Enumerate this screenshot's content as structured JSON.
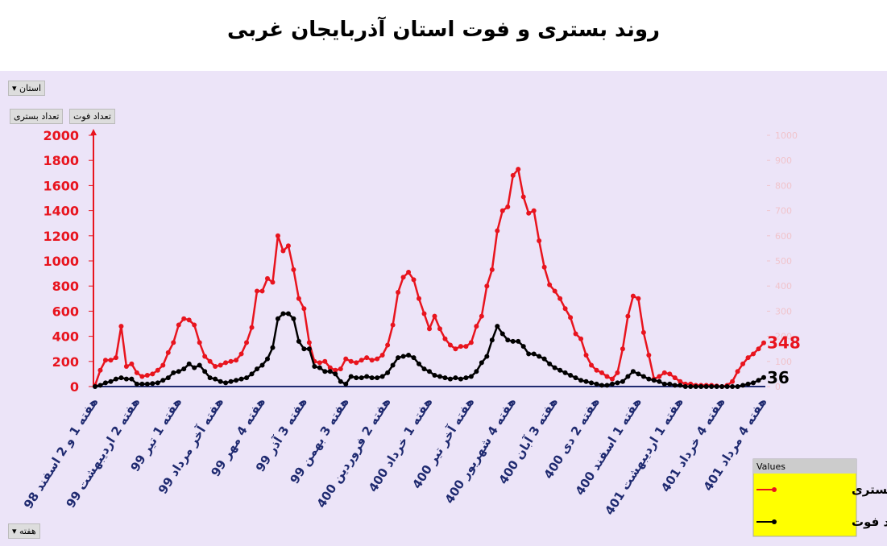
{
  "chart_data": {
    "type": "line",
    "title": "روند بستری و فوت استان آذربایجان غربی",
    "categories": [
      "هفته 1 و 2 اسفند 98",
      null,
      null,
      null,
      null,
      null,
      null,
      null,
      "هفته 2 اردیبهشت 99",
      null,
      null,
      null,
      null,
      null,
      null,
      null,
      "هفته 1 تیر 99",
      null,
      null,
      null,
      null,
      null,
      null,
      null,
      "هفته آخر مرداد 99",
      null,
      null,
      null,
      null,
      null,
      null,
      null,
      "هفته 4 مهر 99",
      null,
      null,
      null,
      null,
      null,
      null,
      null,
      "هفته 3 آذر 99",
      null,
      null,
      null,
      null,
      null,
      null,
      null,
      "هفته 3 بهمن 99",
      null,
      null,
      null,
      null,
      null,
      null,
      null,
      "هفته 2 فروردین 400",
      null,
      null,
      null,
      null,
      null,
      null,
      null,
      "هفته 1 خرداد 400",
      null,
      null,
      null,
      null,
      null,
      null,
      null,
      "هفته آخر تیر 400",
      null,
      null,
      null,
      null,
      null,
      null,
      null,
      "هفته 4 شهریور 400",
      null,
      null,
      null,
      null,
      null,
      null,
      null,
      "هفته 3 آبان 400",
      null,
      null,
      null,
      null,
      null,
      null,
      null,
      "هفته 2 دی 400",
      null,
      null,
      null,
      null,
      null,
      null,
      null,
      "هفته 1 اسفند 400",
      null,
      null,
      null,
      null,
      null,
      null,
      null,
      "هفته 1 اردیبهشت 401",
      null,
      null,
      null,
      null,
      null,
      null,
      null,
      "هفته 4 خرداد 401",
      null,
      null,
      null,
      null,
      null,
      null,
      null,
      "هفته 4 مرداد 401"
    ],
    "series": [
      {
        "name": "تعداد بستری",
        "color": "#e8141e",
        "axis": "y",
        "values": [
          10,
          130,
          210,
          210,
          230,
          480,
          160,
          180,
          110,
          80,
          90,
          100,
          130,
          170,
          270,
          350,
          490,
          540,
          530,
          490,
          350,
          240,
          200,
          160,
          170,
          190,
          200,
          210,
          260,
          350,
          470,
          760,
          760,
          860,
          830,
          1200,
          1080,
          1120,
          930,
          700,
          620,
          350,
          200,
          190,
          200,
          150,
          130,
          140,
          220,
          200,
          190,
          210,
          230,
          210,
          220,
          250,
          330,
          490,
          750,
          870,
          910,
          850,
          700,
          580,
          460,
          560,
          460,
          380,
          330,
          300,
          320,
          320,
          350,
          480,
          560,
          800,
          930,
          1240,
          1400,
          1430,
          1680,
          1730,
          1510,
          1380,
          1400,
          1160,
          950,
          810,
          760,
          700,
          620,
          550,
          420,
          380,
          250,
          170,
          130,
          110,
          80,
          60,
          110,
          300,
          560,
          720,
          700,
          430,
          250,
          60,
          80,
          110,
          100,
          70,
          40,
          20,
          20,
          10,
          10,
          10,
          10,
          5,
          0,
          10,
          40,
          120,
          180,
          230,
          260,
          300,
          348
        ]
      },
      {
        "name": "تعداد فوت",
        "color": "#000000",
        "axis": "y2",
        "values": [
          0,
          5,
          15,
          20,
          30,
          35,
          30,
          30,
          10,
          10,
          10,
          12,
          15,
          25,
          35,
          55,
          60,
          70,
          90,
          75,
          85,
          60,
          35,
          30,
          20,
          15,
          20,
          25,
          30,
          35,
          50,
          70,
          85,
          110,
          155,
          270,
          290,
          290,
          270,
          180,
          150,
          150,
          80,
          75,
          60,
          60,
          50,
          20,
          10,
          40,
          35,
          35,
          40,
          35,
          35,
          40,
          55,
          85,
          115,
          120,
          125,
          115,
          90,
          70,
          60,
          45,
          40,
          35,
          30,
          35,
          30,
          35,
          40,
          60,
          95,
          120,
          185,
          240,
          210,
          185,
          180,
          180,
          160,
          130,
          130,
          120,
          110,
          90,
          75,
          65,
          55,
          45,
          35,
          25,
          20,
          15,
          10,
          5,
          5,
          10,
          15,
          20,
          40,
          60,
          50,
          40,
          30,
          25,
          20,
          10,
          10,
          5,
          5,
          0,
          0,
          0,
          0,
          0,
          0,
          0,
          0,
          0,
          0,
          0,
          5,
          10,
          15,
          25,
          36
        ]
      }
    ],
    "ylim": [
      0,
      2000
    ],
    "yticks": [
      0,
      200,
      400,
      600,
      800,
      1000,
      1200,
      1400,
      1600,
      1800,
      2000
    ],
    "y2lim": [
      0,
      1000
    ],
    "y2ticks": [
      0,
      100,
      200,
      300,
      400,
      500,
      600,
      700,
      800,
      900,
      1000
    ],
    "legend": "bottom-right",
    "legend_title": "Values"
  },
  "controls": {
    "province_filter": "استان",
    "value_buttons": [
      "تعداد فوت",
      "تعداد بستری"
    ],
    "week_filter": "هفته"
  }
}
